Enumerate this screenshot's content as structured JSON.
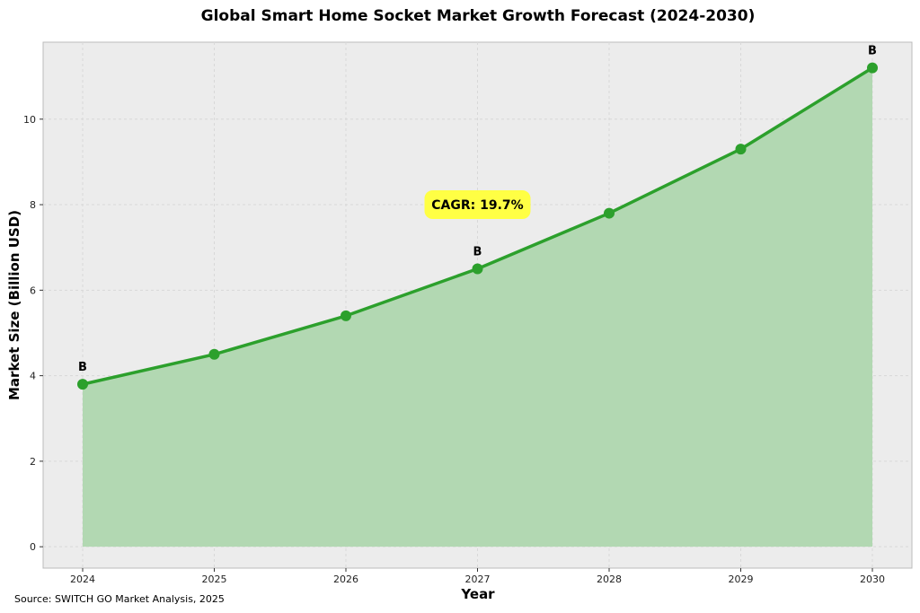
{
  "chart_data": {
    "type": "area",
    "title": "Global Smart Home Socket Market Growth Forecast (2024-2030)",
    "xlabel": "Year",
    "ylabel": "Market Size (Billion USD)",
    "x": [
      "2024",
      "2025",
      "2026",
      "2027",
      "2028",
      "2029",
      "2030"
    ],
    "series": [
      {
        "values": [
          3.8,
          4.5,
          5.4,
          6.5,
          7.8,
          9.3,
          11.2
        ]
      }
    ],
    "ylim": [
      -0.5,
      11.8
    ],
    "yticks": [
      0,
      2,
      4,
      6,
      8,
      10
    ],
    "grid": true,
    "point_labels": [
      {
        "x": "2024",
        "text": "B"
      },
      {
        "x": "2027",
        "text": "B"
      },
      {
        "x": "2030",
        "text": "B"
      }
    ],
    "annotation": {
      "text": "CAGR: 19.7%",
      "x": "2027",
      "y": 8.0
    },
    "source": "Source: SWITCH GO Market Analysis, 2025",
    "colors": {
      "line": "#2ca02c",
      "fill": "#b2d8b2",
      "plot_background": "#ececec",
      "annotation_background": "#ffff44"
    }
  }
}
